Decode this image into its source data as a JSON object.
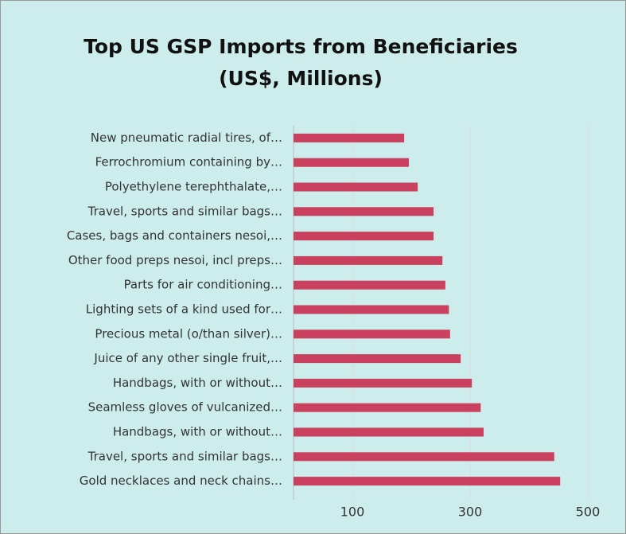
{
  "chart_data": {
    "type": "bar",
    "orientation": "horizontal",
    "title": "Top US GSP Imports from Beneficiaries",
    "subtitle": "(US$, Millions)",
    "categories": [
      "New pneumatic radial tires, of…",
      "Ferrochromium containing by…",
      "Polyethylene terephthalate,…",
      "Travel, sports and similar bags…",
      "Cases, bags and containers nesoi,…",
      "Other food preps nesoi, incl preps…",
      "Parts for air conditioning…",
      "Lighting sets of a kind used for…",
      "Precious metal (o/than silver)…",
      "Juice of any other single fruit,…",
      "Handbags, with or without…",
      "Seamless gloves of vulcanized…",
      "Handbags, with or without…",
      "Travel, sports and similar bags…",
      "Gold necklaces and neck chains…"
    ],
    "values": [
      188,
      196,
      211,
      238,
      238,
      253,
      258,
      264,
      266,
      284,
      303,
      318,
      323,
      443,
      453
    ],
    "color": "#c9415f",
    "xlim": [
      0,
      500
    ],
    "xticks": [
      100,
      300,
      500
    ],
    "grid": true
  }
}
